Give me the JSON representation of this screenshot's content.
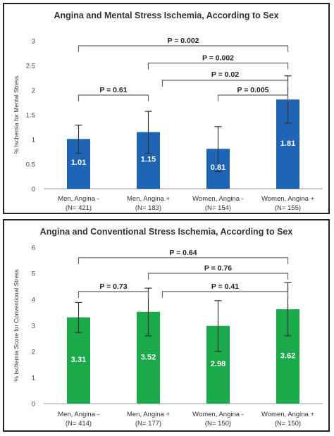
{
  "chart_data": [
    {
      "type": "bar",
      "title": "Angina and Mental Stress Ischemia, According to Sex",
      "ylabel": "% Ischemia for Mental Stress",
      "xlabel": "",
      "ylim": [
        0,
        3
      ],
      "yticks": [
        "0",
        "0.5",
        "1",
        "1.5",
        "2",
        "2.5",
        "3"
      ],
      "ytick_values": [
        0,
        0.5,
        1,
        1.5,
        2,
        2.5,
        3
      ],
      "categories": [
        [
          "Men, Angina -",
          "(N= 421)"
        ],
        [
          "Men, Angina +",
          "(N= 183)"
        ],
        [
          "Women, Angina -",
          "(N= 154)"
        ],
        [
          "Women, Angina +",
          "(N= 155)"
        ]
      ],
      "values": [
        1.01,
        1.15,
        0.81,
        1.81
      ],
      "data_labels": [
        "1.01",
        "1.15",
        "0.81",
        "1.81"
      ],
      "error_low": [
        0.72,
        0.72,
        0.35,
        1.33
      ],
      "error_high": [
        1.29,
        1.57,
        1.26,
        2.29
      ],
      "bar_color": "#1f63b4",
      "grid": false,
      "comparisons": [
        {
          "from": 0,
          "to": 3,
          "label": "P = 0.002",
          "level": 2.9
        },
        {
          "from": 1,
          "to": 3,
          "label": "P = 0.002",
          "level": 2.55
        },
        {
          "from": 2,
          "to": 3,
          "label": "P = 0.02",
          "level": 2.2
        },
        {
          "from": 2,
          "to": 3,
          "label": "P = 0.005",
          "level": 1.9
        },
        {
          "from": 0,
          "to": 1,
          "label": "P = 0.61",
          "level": 1.9
        }
      ]
    },
    {
      "type": "bar",
      "title": "Angina and Conventional Stress Ischemia, According to Sex",
      "ylabel": "% Ischemia Score for Conventional Stress",
      "xlabel": "",
      "ylim": [
        0,
        6
      ],
      "yticks": [
        "0",
        "1",
        "2",
        "3",
        "4",
        "5",
        "6"
      ],
      "ytick_values": [
        0,
        1,
        2,
        3,
        4,
        5,
        6
      ],
      "categories": [
        [
          "Men, Angina -",
          "(N= 414)"
        ],
        [
          "Men, Angina +",
          "(N= 177)"
        ],
        [
          "Women, Angina -",
          "(N= 150)"
        ],
        [
          "Women, Angina +",
          "(N= 150)"
        ]
      ],
      "values": [
        3.31,
        3.52,
        2.98,
        3.62
      ],
      "data_labels": [
        "3.31",
        "3.52",
        "2.98",
        "3.62"
      ],
      "error_low": [
        2.72,
        2.6,
        2.0,
        2.6
      ],
      "error_high": [
        3.88,
        4.43,
        3.95,
        4.64
      ],
      "bar_color": "#1aaa4a",
      "grid": false,
      "comparisons": [
        {
          "from": 0,
          "to": 3,
          "label": "P = 0.64",
          "level": 5.6
        },
        {
          "from": 1,
          "to": 3,
          "label": "P = 0.76",
          "level": 5.0
        },
        {
          "from": 2,
          "to": 3,
          "label": "P = 0.41",
          "level": 4.3
        },
        {
          "from": 0,
          "to": 1,
          "label": "P = 0.73",
          "level": 4.3
        }
      ]
    }
  ]
}
